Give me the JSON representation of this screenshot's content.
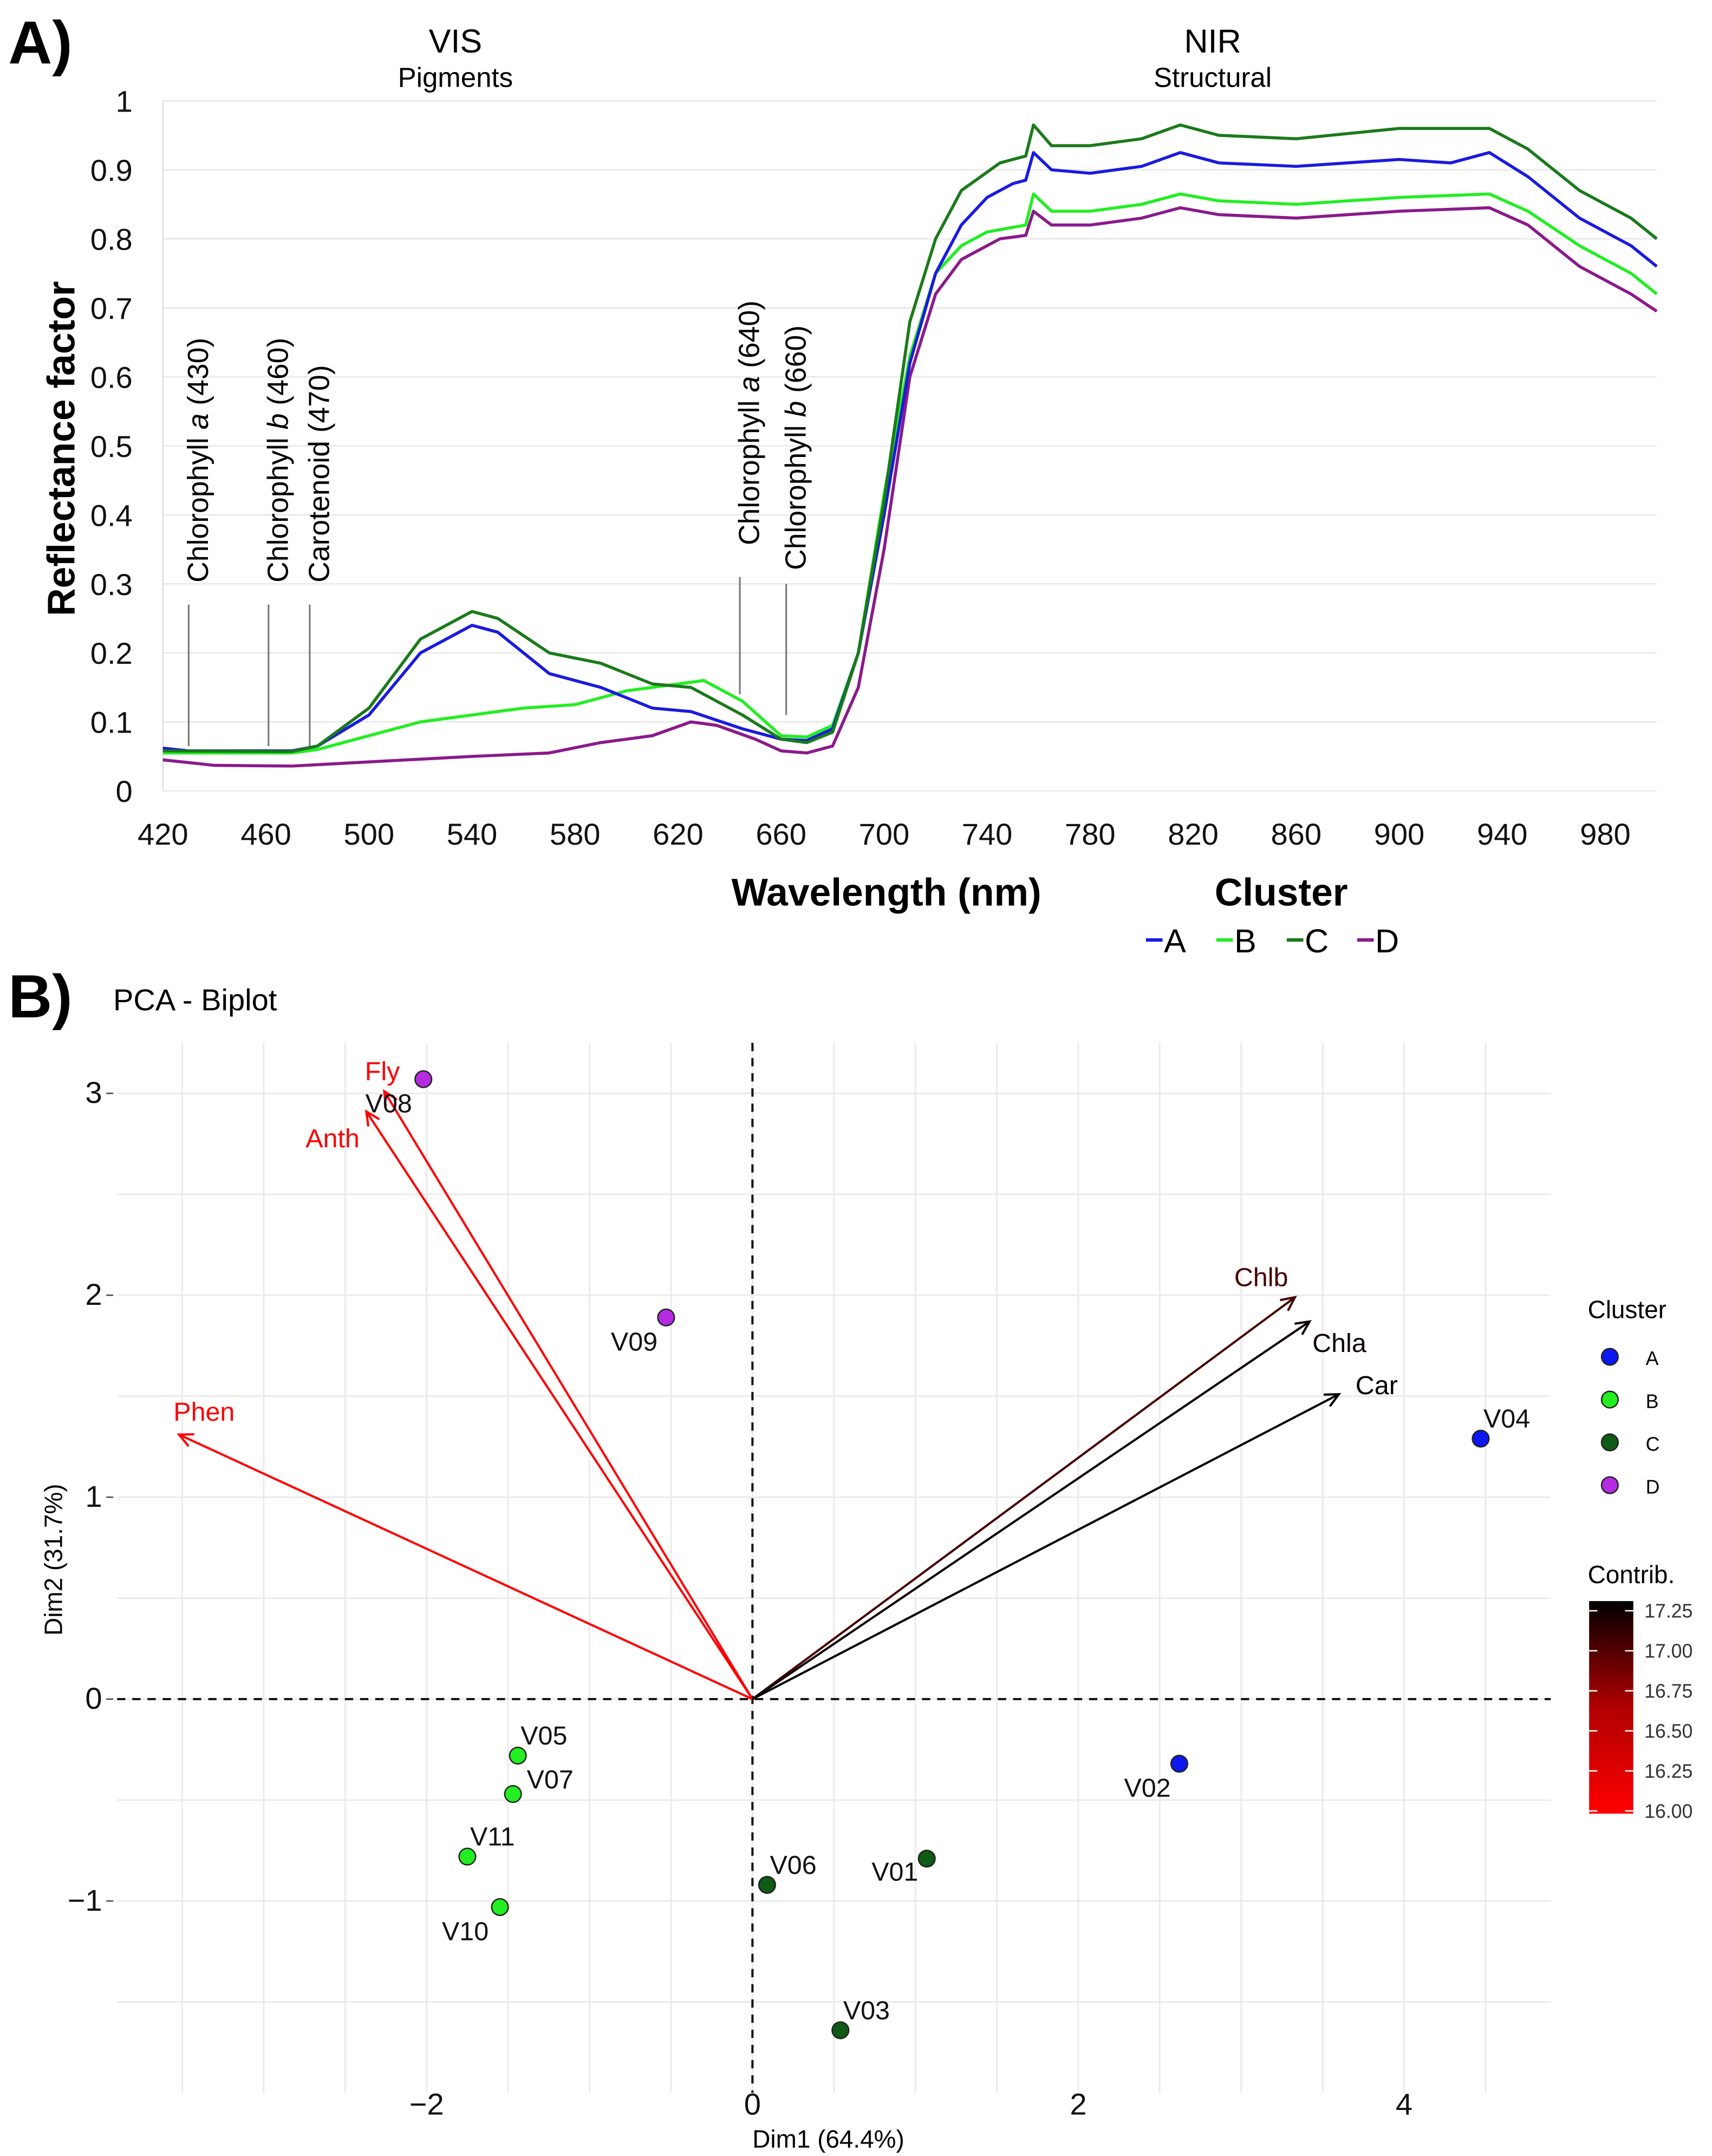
{
  "chart_data": [
    {
      "type": "line",
      "panel_label": "A)",
      "xlabel": "Wavelength (nm)",
      "ylabel": "Reflectance factor",
      "xlim": [
        420,
        1000
      ],
      "ylim": [
        0,
        1
      ],
      "xticks": [
        420,
        460,
        500,
        540,
        580,
        620,
        660,
        700,
        740,
        780,
        820,
        860,
        900,
        940,
        980
      ],
      "yticks": [
        0,
        0.1,
        0.2,
        0.3,
        0.4,
        0.5,
        0.6,
        0.7,
        0.8,
        0.9,
        1
      ],
      "regions": [
        {
          "title": "VIS",
          "subtitle": "Pigments",
          "at": 540
        },
        {
          "title": "NIR",
          "subtitle": "Structural",
          "at": 834
        }
      ],
      "annotations": [
        {
          "pre": "Chlorophyll ",
          "ital": "a",
          "post": " (430)",
          "wavelength": 430,
          "line_top": 0.27,
          "line_bottom": 0.065
        },
        {
          "pre": "Chlorophyll ",
          "ital": "b",
          "post": " (460)",
          "wavelength": 461,
          "line_top": 0.27,
          "line_bottom": 0.065
        },
        {
          "pre": "Carotenoid (470)",
          "ital": "",
          "post": "",
          "wavelength": 477,
          "line_top": 0.27,
          "line_bottom": 0.065
        },
        {
          "pre": "Chlorophyll ",
          "ital": "a",
          "post": " (640)",
          "wavelength": 644,
          "line_top": 0.31,
          "line_bottom": 0.14
        },
        {
          "pre": "Chlorophyll ",
          "ital": "b",
          "post": " (660)",
          "wavelength": 662,
          "line_top": 0.3,
          "line_bottom": 0.11
        }
      ],
      "legend": {
        "title": "Cluster",
        "position": "bottom-right"
      },
      "series": [
        {
          "name": "A",
          "color": "#1a1adf",
          "points": [
            [
              420,
              0.062
            ],
            [
              430,
              0.058
            ],
            [
              470,
              0.058
            ],
            [
              480,
              0.065
            ],
            [
              500,
              0.11
            ],
            [
              520,
              0.2
            ],
            [
              540,
              0.24
            ],
            [
              550,
              0.23
            ],
            [
              570,
              0.17
            ],
            [
              590,
              0.15
            ],
            [
              610,
              0.12
            ],
            [
              625,
              0.115
            ],
            [
              645,
              0.09
            ],
            [
              660,
              0.075
            ],
            [
              670,
              0.073
            ],
            [
              680,
              0.09
            ],
            [
              690,
              0.2
            ],
            [
              700,
              0.4
            ],
            [
              710,
              0.62
            ],
            [
              720,
              0.75
            ],
            [
              730,
              0.82
            ],
            [
              740,
              0.86
            ],
            [
              750,
              0.88
            ],
            [
              755,
              0.885
            ],
            [
              758,
              0.925
            ],
            [
              765,
              0.9
            ],
            [
              780,
              0.895
            ],
            [
              800,
              0.905
            ],
            [
              815,
              0.925
            ],
            [
              830,
              0.91
            ],
            [
              860,
              0.905
            ],
            [
              900,
              0.915
            ],
            [
              920,
              0.91
            ],
            [
              935,
              0.925
            ],
            [
              950,
              0.89
            ],
            [
              970,
              0.83
            ],
            [
              990,
              0.79
            ],
            [
              1000,
              0.76
            ]
          ]
        },
        {
          "name": "B",
          "color": "#22ee22",
          "points": [
            [
              420,
              0.055
            ],
            [
              470,
              0.055
            ],
            [
              480,
              0.06
            ],
            [
              500,
              0.08
            ],
            [
              520,
              0.1
            ],
            [
              540,
              0.11
            ],
            [
              560,
              0.12
            ],
            [
              580,
              0.125
            ],
            [
              600,
              0.145
            ],
            [
              620,
              0.155
            ],
            [
              630,
              0.16
            ],
            [
              645,
              0.13
            ],
            [
              660,
              0.08
            ],
            [
              670,
              0.078
            ],
            [
              680,
              0.095
            ],
            [
              690,
              0.2
            ],
            [
              700,
              0.43
            ],
            [
              710,
              0.63
            ],
            [
              720,
              0.75
            ],
            [
              730,
              0.79
            ],
            [
              740,
              0.81
            ],
            [
              755,
              0.82
            ],
            [
              758,
              0.865
            ],
            [
              765,
              0.84
            ],
            [
              780,
              0.84
            ],
            [
              800,
              0.85
            ],
            [
              815,
              0.865
            ],
            [
              830,
              0.855
            ],
            [
              860,
              0.85
            ],
            [
              900,
              0.86
            ],
            [
              935,
              0.865
            ],
            [
              950,
              0.84
            ],
            [
              970,
              0.79
            ],
            [
              990,
              0.75
            ],
            [
              1000,
              0.72
            ]
          ]
        },
        {
          "name": "C",
          "color": "#1a7a1a",
          "points": [
            [
              420,
              0.058
            ],
            [
              470,
              0.057
            ],
            [
              480,
              0.065
            ],
            [
              500,
              0.12
            ],
            [
              520,
              0.22
            ],
            [
              540,
              0.26
            ],
            [
              550,
              0.25
            ],
            [
              570,
              0.2
            ],
            [
              590,
              0.185
            ],
            [
              610,
              0.155
            ],
            [
              625,
              0.15
            ],
            [
              645,
              0.11
            ],
            [
              660,
              0.075
            ],
            [
              670,
              0.07
            ],
            [
              680,
              0.085
            ],
            [
              690,
              0.2
            ],
            [
              700,
              0.42
            ],
            [
              710,
              0.68
            ],
            [
              720,
              0.8
            ],
            [
              730,
              0.87
            ],
            [
              745,
              0.91
            ],
            [
              755,
              0.92
            ],
            [
              758,
              0.965
            ],
            [
              765,
              0.935
            ],
            [
              780,
              0.935
            ],
            [
              800,
              0.945
            ],
            [
              815,
              0.965
            ],
            [
              830,
              0.95
            ],
            [
              860,
              0.945
            ],
            [
              900,
              0.96
            ],
            [
              935,
              0.96
            ],
            [
              950,
              0.93
            ],
            [
              970,
              0.87
            ],
            [
              990,
              0.83
            ],
            [
              1000,
              0.8
            ]
          ]
        },
        {
          "name": "D",
          "color": "#8a1a8a",
          "points": [
            [
              420,
              0.045
            ],
            [
              440,
              0.037
            ],
            [
              470,
              0.036
            ],
            [
              500,
              0.042
            ],
            [
              540,
              0.05
            ],
            [
              570,
              0.055
            ],
            [
              590,
              0.07
            ],
            [
              610,
              0.08
            ],
            [
              625,
              0.1
            ],
            [
              635,
              0.095
            ],
            [
              650,
              0.075
            ],
            [
              660,
              0.058
            ],
            [
              670,
              0.055
            ],
            [
              680,
              0.065
            ],
            [
              690,
              0.15
            ],
            [
              700,
              0.35
            ],
            [
              710,
              0.6
            ],
            [
              720,
              0.72
            ],
            [
              730,
              0.77
            ],
            [
              745,
              0.8
            ],
            [
              755,
              0.805
            ],
            [
              758,
              0.84
            ],
            [
              765,
              0.82
            ],
            [
              780,
              0.82
            ],
            [
              800,
              0.83
            ],
            [
              815,
              0.845
            ],
            [
              830,
              0.835
            ],
            [
              860,
              0.83
            ],
            [
              900,
              0.84
            ],
            [
              935,
              0.845
            ],
            [
              950,
              0.82
            ],
            [
              970,
              0.76
            ],
            [
              990,
              0.72
            ],
            [
              1000,
              0.695
            ]
          ]
        }
      ]
    },
    {
      "type": "scatter",
      "panel_label": "B)",
      "title": "PCA - Biplot",
      "xlabel": "Dim1 (64.4%)",
      "ylabel": "Dim2 (31.7%)",
      "xlim": [
        -3.9,
        4.9
      ],
      "ylim": [
        -1.95,
        3.25
      ],
      "xticks": [
        -2,
        0,
        2,
        4
      ],
      "yticks": [
        -1,
        0,
        1,
        2,
        3
      ],
      "xtick_labels": [
        "−2",
        "0",
        "2",
        "4"
      ],
      "ytick_labels": [
        "−1",
        "0",
        "1",
        "2",
        "3"
      ],
      "cluster_legend": {
        "title": "Cluster",
        "items": [
          {
            "name": "A",
            "color": "#0b18f0"
          },
          {
            "name": "B",
            "color": "#22ee22"
          },
          {
            "name": "C",
            "color": "#0f5a14"
          },
          {
            "name": "D",
            "color": "#b52be0"
          }
        ]
      },
      "contrib_legend": {
        "title": "Contrib.",
        "min": 16.0,
        "max": 17.25,
        "ticks": [
          "17.25",
          "17.00",
          "16.75",
          "16.50",
          "16.25",
          "16.00"
        ],
        "low_color": "#ff0000",
        "high_color": "#000000"
      },
      "points": [
        {
          "label": "V01",
          "x": 1.07,
          "y": -0.79,
          "cluster": "C"
        },
        {
          "label": "V02",
          "x": 2.62,
          "y": -0.32,
          "cluster": "A"
        },
        {
          "label": "V03",
          "x": 0.54,
          "y": -1.64,
          "cluster": "C"
        },
        {
          "label": "V04",
          "x": 4.47,
          "y": 1.29,
          "cluster": "A"
        },
        {
          "label": "V05",
          "x": -1.44,
          "y": -0.28,
          "cluster": "B"
        },
        {
          "label": "V06",
          "x": 0.09,
          "y": -0.92,
          "cluster": "C"
        },
        {
          "label": "V07",
          "x": -1.47,
          "y": -0.47,
          "cluster": "B"
        },
        {
          "label": "V08",
          "x": -2.02,
          "y": 3.07,
          "cluster": "D"
        },
        {
          "label": "V09",
          "x": -0.53,
          "y": 1.89,
          "cluster": "D"
        },
        {
          "label": "V10",
          "x": -1.55,
          "y": -1.03,
          "cluster": "B"
        },
        {
          "label": "V11",
          "x": -1.75,
          "y": -0.78,
          "cluster": "B"
        }
      ],
      "variables": [
        {
          "label": "Fly",
          "x": -2.26,
          "y": 3.01,
          "contrib": 16.0
        },
        {
          "label": "Anth",
          "x": -2.37,
          "y": 2.91,
          "contrib": 16.05
        },
        {
          "label": "Phen",
          "x": -3.52,
          "y": 1.31,
          "contrib": 16.0
        },
        {
          "label": "Chlb",
          "x": 3.33,
          "y": 1.99,
          "contrib": 17.0
        },
        {
          "label": "Chla",
          "x": 3.42,
          "y": 1.87,
          "contrib": 17.2
        },
        {
          "label": "Car",
          "x": 3.6,
          "y": 1.51,
          "contrib": 17.25
        }
      ]
    }
  ]
}
